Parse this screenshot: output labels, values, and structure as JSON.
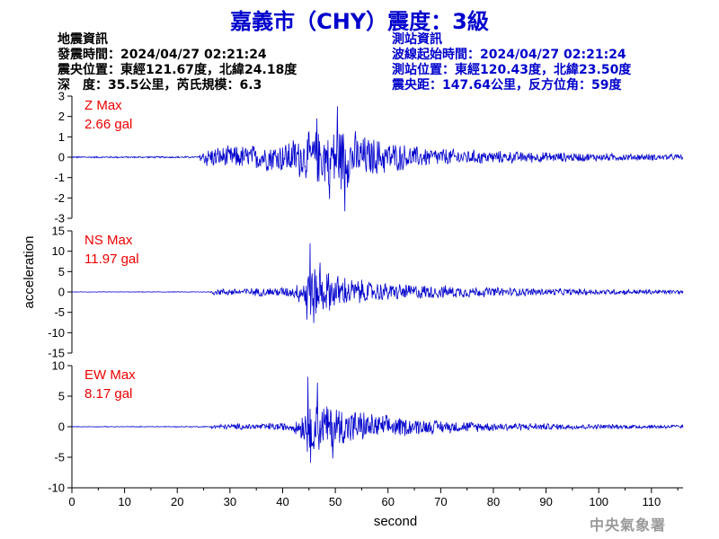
{
  "header": {
    "title": "嘉義市（CHY）震度：3級"
  },
  "quake_info": {
    "heading": "地震資訊",
    "time": "發震時間：2024/04/27 02:21:24",
    "location": "震央位置：東經121.67度，北緯24.18度",
    "depth_magnitude": "深　度：35.5公里，芮氏規模：6.3"
  },
  "station_info": {
    "heading": "測站資訊",
    "onset_time": "波線起始時間：2024/04/27 02:21:24",
    "location": "測站位置：東經120.43度，北緯23.50度",
    "distance_azimuth": "震央距：147.64公里，反方位角：59度"
  },
  "footer": {
    "agency": "中央氣象署"
  },
  "colors": {
    "trace": "#0000cc",
    "peak_label": "#ee0000",
    "title": "#0000cc",
    "axis": "#000000"
  },
  "chart_data": {
    "type": "line",
    "xlabel": "second",
    "ylabel": "acceleration",
    "xlim": [
      0,
      116
    ],
    "x_ticks": [
      0,
      10,
      20,
      30,
      40,
      50,
      60,
      70,
      80,
      90,
      100,
      110
    ],
    "panels": [
      {
        "component": "Z",
        "max_label": "Z Max",
        "max_value": "2.66 gal",
        "ylim": [
          -3,
          3
        ],
        "y_ticks": [
          3,
          2,
          1,
          0,
          -1,
          -2,
          -3
        ],
        "envelope": {
          "t": [
            0,
            24,
            25,
            30,
            35,
            40,
            44,
            48,
            50,
            52,
            55,
            60,
            65,
            70,
            80,
            90,
            100,
            116
          ],
          "amp": [
            0.04,
            0.05,
            0.55,
            0.6,
            0.7,
            0.85,
            1.25,
            1.6,
            1.9,
            1.7,
            1.2,
            0.9,
            0.6,
            0.5,
            0.35,
            0.28,
            0.22,
            0.16
          ]
        },
        "peaks": [
          [
            50.4,
            2.5
          ],
          [
            51.8,
            -2.66
          ],
          [
            48.9,
            -2.05
          ],
          [
            46.5,
            1.9
          ]
        ]
      },
      {
        "component": "NS",
        "max_label": "NS Max",
        "max_value": "11.97 gal",
        "ylim": [
          -15,
          15
        ],
        "y_ticks": [
          15,
          10,
          5,
          0,
          -5,
          -10,
          -15
        ],
        "envelope": {
          "t": [
            0,
            26,
            27,
            35,
            42,
            44,
            45,
            47,
            50,
            53,
            57,
            62,
            70,
            80,
            90,
            100,
            116
          ],
          "amp": [
            0.05,
            0.08,
            0.9,
            1.1,
            1.5,
            4.0,
            7.5,
            6.0,
            5.0,
            3.8,
            2.8,
            2.3,
            1.8,
            1.3,
            1.0,
            0.8,
            0.6
          ]
        },
        "peaks": [
          [
            45.2,
            11.97
          ],
          [
            45.9,
            -7.6
          ],
          [
            47.1,
            7.2
          ],
          [
            44.6,
            -6.8
          ]
        ]
      },
      {
        "component": "EW",
        "max_label": "EW Max",
        "max_value": "8.17 gal",
        "ylim": [
          -10,
          10
        ],
        "y_ticks": [
          10,
          5,
          0,
          -5,
          -10
        ],
        "envelope": {
          "t": [
            0,
            26,
            27,
            35,
            42,
            44,
            45,
            48,
            51,
            54,
            58,
            63,
            70,
            80,
            90,
            100,
            116
          ],
          "amp": [
            0.05,
            0.08,
            0.45,
            0.6,
            0.8,
            3.0,
            5.0,
            4.5,
            3.8,
            3.0,
            2.2,
            1.7,
            1.2,
            0.8,
            0.6,
            0.45,
            0.35
          ]
        },
        "peaks": [
          [
            44.8,
            8.17
          ],
          [
            45.3,
            -5.9
          ],
          [
            46.6,
            7.2
          ],
          [
            49.5,
            -5.2
          ]
        ]
      }
    ]
  }
}
